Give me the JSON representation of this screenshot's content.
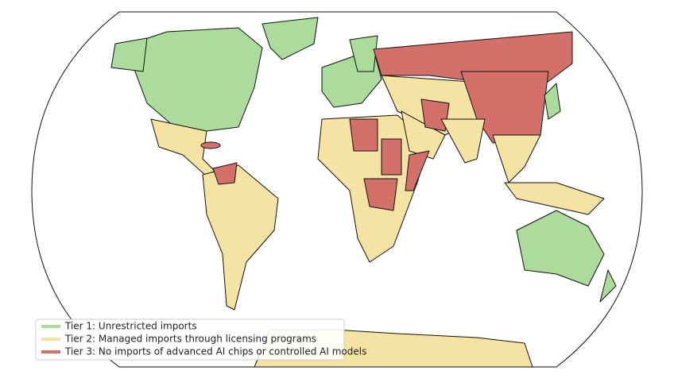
{
  "legend": {
    "items": [
      {
        "label": "Tier 1: Unrestricted imports",
        "color": "#acdc9c"
      },
      {
        "label": "Tier 2: Managed imports through licensing programs",
        "color": "#f4e3a2"
      },
      {
        "label": "Tier 3: No imports of advanced AI chips or controlled AI models",
        "color": "#d4706a"
      }
    ]
  }
}
